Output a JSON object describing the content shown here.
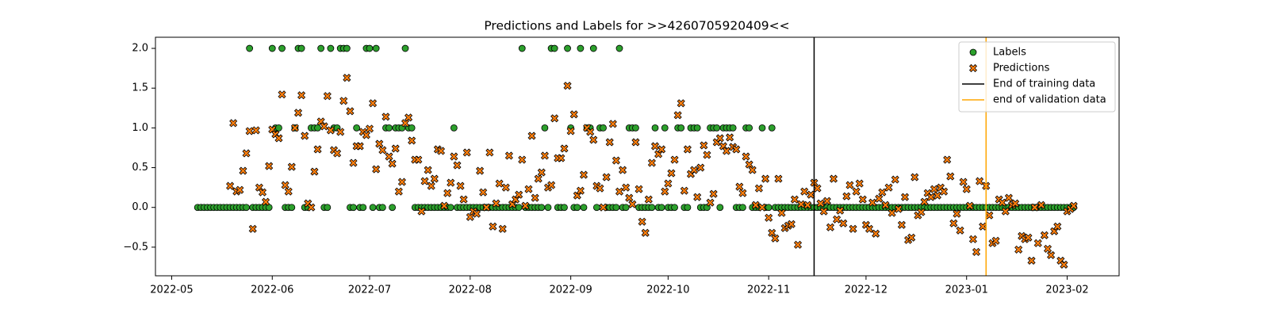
{
  "chart_data": {
    "type": "scatter",
    "title": "Predictions and Labels for >>4260705920409<<",
    "xlim": [
      "2022-04-26",
      "2023-02-17"
    ],
    "xticks": [
      {
        "value": "2022-05-01",
        "label": "2022-05"
      },
      {
        "value": "2022-06-01",
        "label": "2022-06"
      },
      {
        "value": "2022-07-01",
        "label": "2022-07"
      },
      {
        "value": "2022-08-01",
        "label": "2022-08"
      },
      {
        "value": "2022-09-01",
        "label": "2022-09"
      },
      {
        "value": "2022-10-01",
        "label": "2022-10"
      },
      {
        "value": "2022-11-01",
        "label": "2022-11"
      },
      {
        "value": "2022-12-01",
        "label": "2022-12"
      },
      {
        "value": "2023-01-01",
        "label": "2023-01"
      },
      {
        "value": "2023-02-01",
        "label": "2023-02"
      }
    ],
    "ylim": [
      -0.86,
      2.14
    ],
    "yticks": [
      {
        "value": -0.5,
        "label": "−0.5"
      },
      {
        "value": 0,
        "label": "0.0"
      },
      0.5,
      {
        "value": 1,
        "label": "1.0"
      },
      1.5,
      {
        "value": 2,
        "label": "2.0"
      }
    ],
    "legend": "upper right",
    "x": [
      "2022-05-09",
      "2022-05-10",
      "2022-05-11",
      "2022-05-12",
      "2022-05-13",
      "2022-05-14",
      "2022-05-15",
      "2022-05-16",
      "2022-05-17",
      "2022-05-18",
      "2022-05-19",
      "2022-05-20",
      "2022-05-21",
      "2022-05-22",
      "2022-05-23",
      "2022-05-24",
      "2022-05-25",
      "2022-05-26",
      "2022-05-27",
      "2022-05-28",
      "2022-05-29",
      "2022-05-30",
      "2022-05-31",
      "2022-06-01",
      "2022-06-02",
      "2022-06-03",
      "2022-06-04",
      "2022-06-05",
      "2022-06-06",
      "2022-06-07",
      "2022-06-08",
      "2022-06-09",
      "2022-06-10",
      "2022-06-11",
      "2022-06-12",
      "2022-06-13",
      "2022-06-14",
      "2022-06-15",
      "2022-06-16",
      "2022-06-17",
      "2022-06-18",
      "2022-06-19",
      "2022-06-20",
      "2022-06-21",
      "2022-06-22",
      "2022-06-23",
      "2022-06-24",
      "2022-06-25",
      "2022-06-26",
      "2022-06-27",
      "2022-06-28",
      "2022-06-29",
      "2022-06-30",
      "2022-07-01",
      "2022-07-02",
      "2022-07-03",
      "2022-07-04",
      "2022-07-05",
      "2022-07-06",
      "2022-07-07",
      "2022-07-08",
      "2022-07-09",
      "2022-07-10",
      "2022-07-11",
      "2022-07-12",
      "2022-07-13",
      "2022-07-14",
      "2022-07-15",
      "2022-07-16",
      "2022-07-17",
      "2022-07-18",
      "2022-07-19",
      "2022-07-20",
      "2022-07-21",
      "2022-07-22",
      "2022-07-23",
      "2022-07-24",
      "2022-07-25",
      "2022-07-26",
      "2022-07-27",
      "2022-07-28",
      "2022-07-29",
      "2022-07-30",
      "2022-07-31",
      "2022-08-01",
      "2022-08-02",
      "2022-08-03",
      "2022-08-04",
      "2022-08-05",
      "2022-08-06",
      "2022-08-07",
      "2022-08-08",
      "2022-08-09",
      "2022-08-10",
      "2022-08-11",
      "2022-08-12",
      "2022-08-13",
      "2022-08-14",
      "2022-08-15",
      "2022-08-16",
      "2022-08-17",
      "2022-08-18",
      "2022-08-19",
      "2022-08-20",
      "2022-08-21",
      "2022-08-22",
      "2022-08-23",
      "2022-08-24",
      "2022-08-25",
      "2022-08-26",
      "2022-08-27",
      "2022-08-28",
      "2022-08-29",
      "2022-08-30",
      "2022-08-31",
      "2022-09-01",
      "2022-09-02",
      "2022-09-03",
      "2022-09-04",
      "2022-09-05",
      "2022-09-06",
      "2022-09-07",
      "2022-09-08",
      "2022-09-09",
      "2022-09-10",
      "2022-09-11",
      "2022-09-12",
      "2022-09-13",
      "2022-09-14",
      "2022-09-15",
      "2022-09-16",
      "2022-09-17",
      "2022-09-18",
      "2022-09-19",
      "2022-09-20",
      "2022-09-21",
      "2022-09-22",
      "2022-09-23",
      "2022-09-24",
      "2022-09-25",
      "2022-09-26",
      "2022-09-27",
      "2022-09-28",
      "2022-09-29",
      "2022-09-30",
      "2022-10-01",
      "2022-10-02",
      "2022-10-03",
      "2022-10-04",
      "2022-10-05",
      "2022-10-06",
      "2022-10-07",
      "2022-10-08",
      "2022-10-09",
      "2022-10-10",
      "2022-10-11",
      "2022-10-12",
      "2022-10-13",
      "2022-10-14",
      "2022-10-15",
      "2022-10-16",
      "2022-10-17",
      "2022-10-18",
      "2022-10-19",
      "2022-10-20",
      "2022-10-21",
      "2022-10-22",
      "2022-10-23",
      "2022-10-24",
      "2022-10-25",
      "2022-10-26",
      "2022-10-27",
      "2022-10-28",
      "2022-10-29",
      "2022-10-30",
      "2022-10-31",
      "2022-11-01",
      "2022-11-02",
      "2022-11-03",
      "2022-11-04",
      "2022-11-05",
      "2022-11-06",
      "2022-11-07",
      "2022-11-08",
      "2022-11-09",
      "2022-11-10",
      "2022-11-11",
      "2022-11-12",
      "2022-11-13",
      "2022-11-14",
      "2022-11-15",
      "2022-11-16",
      "2022-11-17",
      "2022-11-18",
      "2022-11-19",
      "2022-11-20",
      "2022-11-21",
      "2022-11-22",
      "2022-11-23",
      "2022-11-24",
      "2022-11-25",
      "2022-11-26",
      "2022-11-27",
      "2022-11-28",
      "2022-11-29",
      "2022-11-30",
      "2022-12-01",
      "2022-12-02",
      "2022-12-03",
      "2022-12-04",
      "2022-12-05",
      "2022-12-06",
      "2022-12-07",
      "2022-12-08",
      "2022-12-09",
      "2022-12-10",
      "2022-12-11",
      "2022-12-12",
      "2022-12-13",
      "2022-12-14",
      "2022-12-15",
      "2022-12-16",
      "2022-12-17",
      "2022-12-18",
      "2022-12-19",
      "2022-12-20",
      "2022-12-21",
      "2022-12-22",
      "2022-12-23",
      "2022-12-24",
      "2022-12-25",
      "2022-12-26",
      "2022-12-27",
      "2022-12-28",
      "2022-12-29",
      "2022-12-30",
      "2022-12-31",
      "2023-01-01",
      "2023-01-02",
      "2023-01-03",
      "2023-01-04",
      "2023-01-05",
      "2023-01-06",
      "2023-01-07",
      "2023-01-08",
      "2023-01-09",
      "2023-01-10",
      "2023-01-11",
      "2023-01-12",
      "2023-01-13",
      "2023-01-14",
      "2023-01-15",
      "2023-01-16",
      "2023-01-17",
      "2023-01-18",
      "2023-01-19",
      "2023-01-20",
      "2023-01-21",
      "2023-01-22",
      "2023-01-23",
      "2023-01-24",
      "2023-01-25",
      "2023-01-26",
      "2023-01-27",
      "2023-01-28",
      "2023-01-29",
      "2023-01-30",
      "2023-01-31",
      "2023-02-01",
      "2023-02-02",
      "2023-02-03"
    ],
    "series": [
      {
        "name": "Labels",
        "marker": "o",
        "color": "#2ca02c",
        "values": [
          0,
          0,
          0,
          0,
          0,
          0,
          0,
          0,
          0,
          0,
          0,
          0,
          0,
          0,
          0,
          0,
          2,
          0,
          0,
          0,
          0,
          0,
          0,
          2,
          1,
          1,
          2,
          0,
          0,
          0,
          1,
          2,
          2,
          0,
          0,
          1,
          1,
          1,
          2,
          0,
          0,
          2,
          1,
          1,
          2,
          2,
          2,
          0,
          0,
          1,
          0,
          0,
          2,
          2,
          0,
          2,
          0,
          0,
          1,
          1,
          0,
          1,
          1,
          1,
          2,
          1,
          1,
          0,
          0,
          0,
          0,
          0,
          0,
          0,
          0,
          0,
          0,
          0,
          0,
          1,
          0,
          0,
          0,
          0,
          0,
          0,
          0,
          0,
          0,
          0,
          0,
          0,
          0,
          0,
          0,
          0,
          0,
          0,
          0,
          0,
          2,
          0,
          0,
          0,
          0,
          0,
          0,
          1,
          0,
          2,
          2,
          0,
          0,
          0,
          2,
          1,
          0,
          0,
          2,
          0,
          1,
          1,
          2,
          0,
          1,
          1,
          0,
          0,
          0,
          0,
          2,
          0,
          0,
          1,
          1,
          1,
          0,
          0,
          0,
          0,
          0,
          1,
          0,
          0,
          1,
          0,
          0,
          0,
          1,
          1,
          0,
          0,
          1,
          1,
          1,
          0,
          0,
          0,
          1,
          1,
          1,
          0,
          1,
          1,
          1,
          1,
          0,
          0,
          0,
          1,
          1,
          0,
          0,
          0,
          1,
          0,
          0,
          1,
          0,
          0,
          0,
          0,
          0,
          0,
          0,
          0,
          0,
          0,
          0,
          0,
          0,
          0,
          0,
          0,
          0,
          0,
          0,
          0,
          0,
          0,
          0,
          0,
          0,
          0,
          0,
          0,
          0,
          0,
          0,
          0,
          0,
          0,
          0,
          0,
          0,
          0,
          0,
          0,
          0,
          0,
          0,
          0,
          0,
          0,
          0,
          0,
          0,
          0,
          0,
          0,
          0,
          0,
          0,
          0,
          0,
          0,
          0,
          0,
          0,
          0,
          0,
          0,
          0,
          0,
          0,
          0,
          0,
          0,
          0,
          0,
          0,
          0,
          0,
          0,
          0,
          0,
          0,
          0,
          0,
          0,
          0,
          0,
          0,
          0,
          0,
          0,
          0,
          0,
          0,
          0,
          0
        ]
      },
      {
        "name": "Predictions",
        "marker": "X",
        "color": "#ff7f0e",
        "values": [
          null,
          null,
          null,
          null,
          null,
          null,
          null,
          null,
          null,
          null,
          0.27,
          1.06,
          0.2,
          0.22,
          0.46,
          0.68,
          0.96,
          -0.27,
          0.97,
          0.25,
          0.19,
          0.07,
          0.52,
          0.98,
          0.92,
          0.87,
          1.42,
          0.28,
          0.2,
          0.51,
          1.0,
          1.19,
          1.41,
          0.9,
          0.05,
          0.0,
          0.45,
          0.73,
          1.08,
          1.02,
          1.4,
          0.97,
          0.72,
          0.68,
          0.95,
          1.34,
          1.63,
          1.21,
          0.56,
          0.77,
          0.77,
          0.95,
          0.91,
          0.99,
          1.31,
          0.48,
          0.8,
          0.72,
          1.14,
          0.64,
          0.55,
          0.74,
          0.2,
          0.32,
          1.06,
          1.13,
          0.84,
          0.6,
          0.6,
          -0.05,
          0.33,
          0.47,
          0.27,
          0.36,
          0.73,
          0.71,
          0.02,
          0.18,
          0.31,
          0.64,
          0.53,
          0.27,
          0.1,
          0.69,
          -0.12,
          -0.05,
          -0.08,
          0.46,
          0.19,
          0.0,
          0.69,
          -0.24,
          0.05,
          0.3,
          -0.27,
          0.25,
          0.65,
          0.04,
          0.1,
          0.16,
          0.6,
          0.02,
          0.23,
          0.9,
          0.12,
          0.36,
          0.44,
          0.65,
          0.25,
          0.28,
          1.12,
          0.62,
          0.62,
          0.74,
          1.53,
          0.96,
          1.17,
          0.15,
          0.21,
          0.41,
          1.0,
          0.95,
          0.85,
          0.27,
          0.24,
          0.0,
          0.38,
          0.82,
          1.05,
          0.59,
          0.2,
          0.47,
          0.25,
          0.12,
          0.04,
          0.82,
          0.23,
          -0.18,
          -0.32,
          0.1,
          0.56,
          0.77,
          0.67,
          0.73,
          0.2,
          0.3,
          0.43,
          0.6,
          1.16,
          1.31,
          0.21,
          0.73,
          0.42,
          0.47,
          0.13,
          0.5,
          0.78,
          0.66,
          0.06,
          0.17,
          0.82,
          0.87,
          0.77,
          0.71,
          0.88,
          0.76,
          0.73,
          0.26,
          0.18,
          0.64,
          0.54,
          0.47,
          0.03,
          0.24,
          0.0,
          0.36,
          -0.13,
          -0.32,
          -0.39,
          0.36,
          -0.07,
          -0.26,
          -0.23,
          -0.21,
          0.1,
          -0.47,
          0.04,
          0.2,
          0.03,
          0.16,
          0.31,
          0.24,
          0.05,
          -0.05,
          0.08,
          -0.25,
          0.36,
          -0.15,
          -0.04,
          -0.2,
          0.14,
          0.28,
          -0.27,
          0.2,
          0.3,
          0.1,
          -0.22,
          -0.27,
          0.06,
          -0.33,
          0.11,
          0.19,
          0.03,
          0.25,
          -0.07,
          0.35,
          -0.02,
          -0.22,
          0.13,
          -0.41,
          -0.38,
          0.38,
          -0.1,
          -0.06,
          0.07,
          0.18,
          0.13,
          0.23,
          0.15,
          0.25,
          0.2,
          0.6,
          0.39,
          -0.2,
          -0.08,
          -0.29,
          0.32,
          0.23,
          0.02,
          -0.4,
          -0.56,
          0.33,
          -0.24,
          0.27,
          -0.1,
          -0.45,
          -0.42,
          0.1,
          0.06,
          -0.05,
          0.12,
          0.03,
          0.05,
          -0.53,
          -0.36,
          -0.4,
          -0.38,
          -0.67,
          0.0,
          -0.45,
          0.03,
          -0.35,
          -0.52,
          -0.6,
          -0.3,
          -0.24,
          -0.67,
          -0.72,
          -0.05,
          -0.02,
          0.02
        ]
      }
    ],
    "vlines": [
      {
        "name": "End of training data",
        "x": "2022-11-15",
        "color": "#000000"
      },
      {
        "name": "end of validation data",
        "x": "2023-01-07",
        "color": "#ffa500"
      }
    ]
  }
}
